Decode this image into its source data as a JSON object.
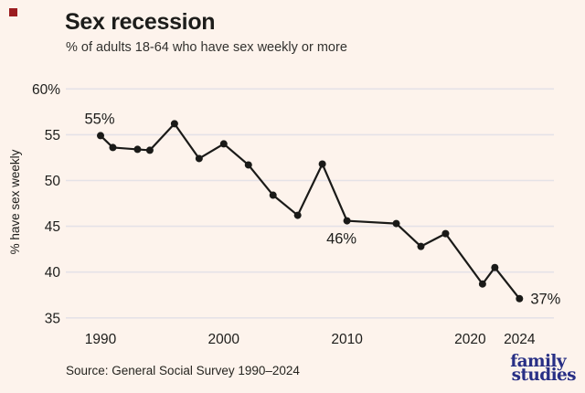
{
  "page": {
    "background_color": "#fdf3ec",
    "brand_square_color": "#9b1c20"
  },
  "header": {
    "title": "Sex recession",
    "subtitle": "% of adults 18-64 who have sex weekly or more"
  },
  "footer": {
    "source": "Source: General Social Survey 1990–2024",
    "logo_line1": "family",
    "logo_line2": "studies",
    "logo_color": "#282f85"
  },
  "chart_data": {
    "type": "line",
    "title": "Sex recession",
    "subtitle": "% of adults 18-64 who have sex weekly or more",
    "xlabel": "",
    "ylabel": "% have sex weekly",
    "ylim": [
      35,
      60
    ],
    "grid": true,
    "legend": false,
    "line_color": "#1a1a18",
    "grid_color": "#e5e2e7",
    "x": [
      1990,
      1991,
      1993,
      1994,
      1996,
      1998,
      2000,
      2002,
      2004,
      2006,
      2008,
      2010,
      2014,
      2016,
      2018,
      2021,
      2022,
      2024
    ],
    "y": [
      54.9,
      53.6,
      53.4,
      53.3,
      56.2,
      52.4,
      54.0,
      51.7,
      48.4,
      46.2,
      51.8,
      45.6,
      45.3,
      42.8,
      44.2,
      38.7,
      40.5,
      37.1
    ],
    "x_ticks": [
      {
        "value": 1990,
        "label": "1990"
      },
      {
        "value": 2000,
        "label": "2000"
      },
      {
        "value": 2010,
        "label": "2010"
      },
      {
        "value": 2020,
        "label": "2020"
      },
      {
        "value": 2024,
        "label": "2024"
      }
    ],
    "y_ticks": [
      {
        "value": 60,
        "label": "60%"
      },
      {
        "value": 55,
        "label": "55"
      },
      {
        "value": 50,
        "label": "50"
      },
      {
        "value": 45,
        "label": "45"
      },
      {
        "value": 40,
        "label": "40"
      },
      {
        "value": 35,
        "label": "35"
      }
    ],
    "annotations": [
      {
        "text": "55%",
        "x": 1990,
        "y": 54.9,
        "placement": "above"
      },
      {
        "text": "46%",
        "x": 2010,
        "y": 45.6,
        "placement": "below"
      },
      {
        "text": "37%",
        "x": 2024,
        "y": 37.1,
        "placement": "right"
      }
    ]
  }
}
